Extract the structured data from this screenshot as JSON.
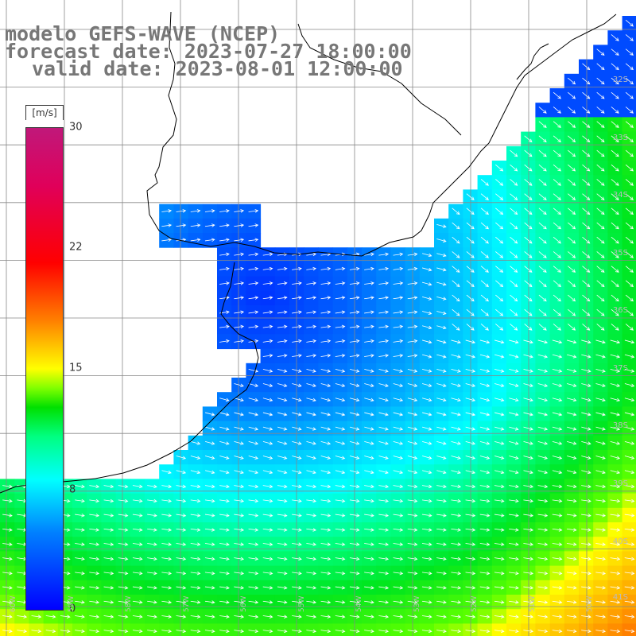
{
  "title": {
    "line1": "modelo GEFS-WAVE (NCEP)",
    "line2": "forecast date: 2023-07-27 18:00:00",
    "line3": "valid date: 2023-08-01 12:00:00"
  },
  "colorbar": {
    "units": "[m/s]",
    "ticks": [
      "30",
      "22",
      "15",
      "8",
      "0"
    ],
    "tick_values": [
      30,
      22,
      15,
      8,
      0
    ],
    "min": 0,
    "max": 30,
    "colors": [
      "#0000ff",
      "#0080ff",
      "#00ffff",
      "#00ff80",
      "#00e000",
      "#80ff00",
      "#ffff00",
      "#ff8000",
      "#ff0000",
      "#e0005a",
      "#c0187a"
    ]
  },
  "lat_labels": [
    "32S",
    "33S",
    "34S",
    "35S",
    "36S",
    "37S",
    "38S",
    "39S",
    "40S",
    "41S"
  ],
  "lon_labels": [
    "60W",
    "59W",
    "58W",
    "57W",
    "56W",
    "55W",
    "54W",
    "53W",
    "52W",
    "51W",
    "50W"
  ],
  "colors": {
    "land": "#ffffff",
    "grid": "#888888",
    "coast": "#000000",
    "arrow": "#ffffff",
    "title_text": "#777777"
  }
}
